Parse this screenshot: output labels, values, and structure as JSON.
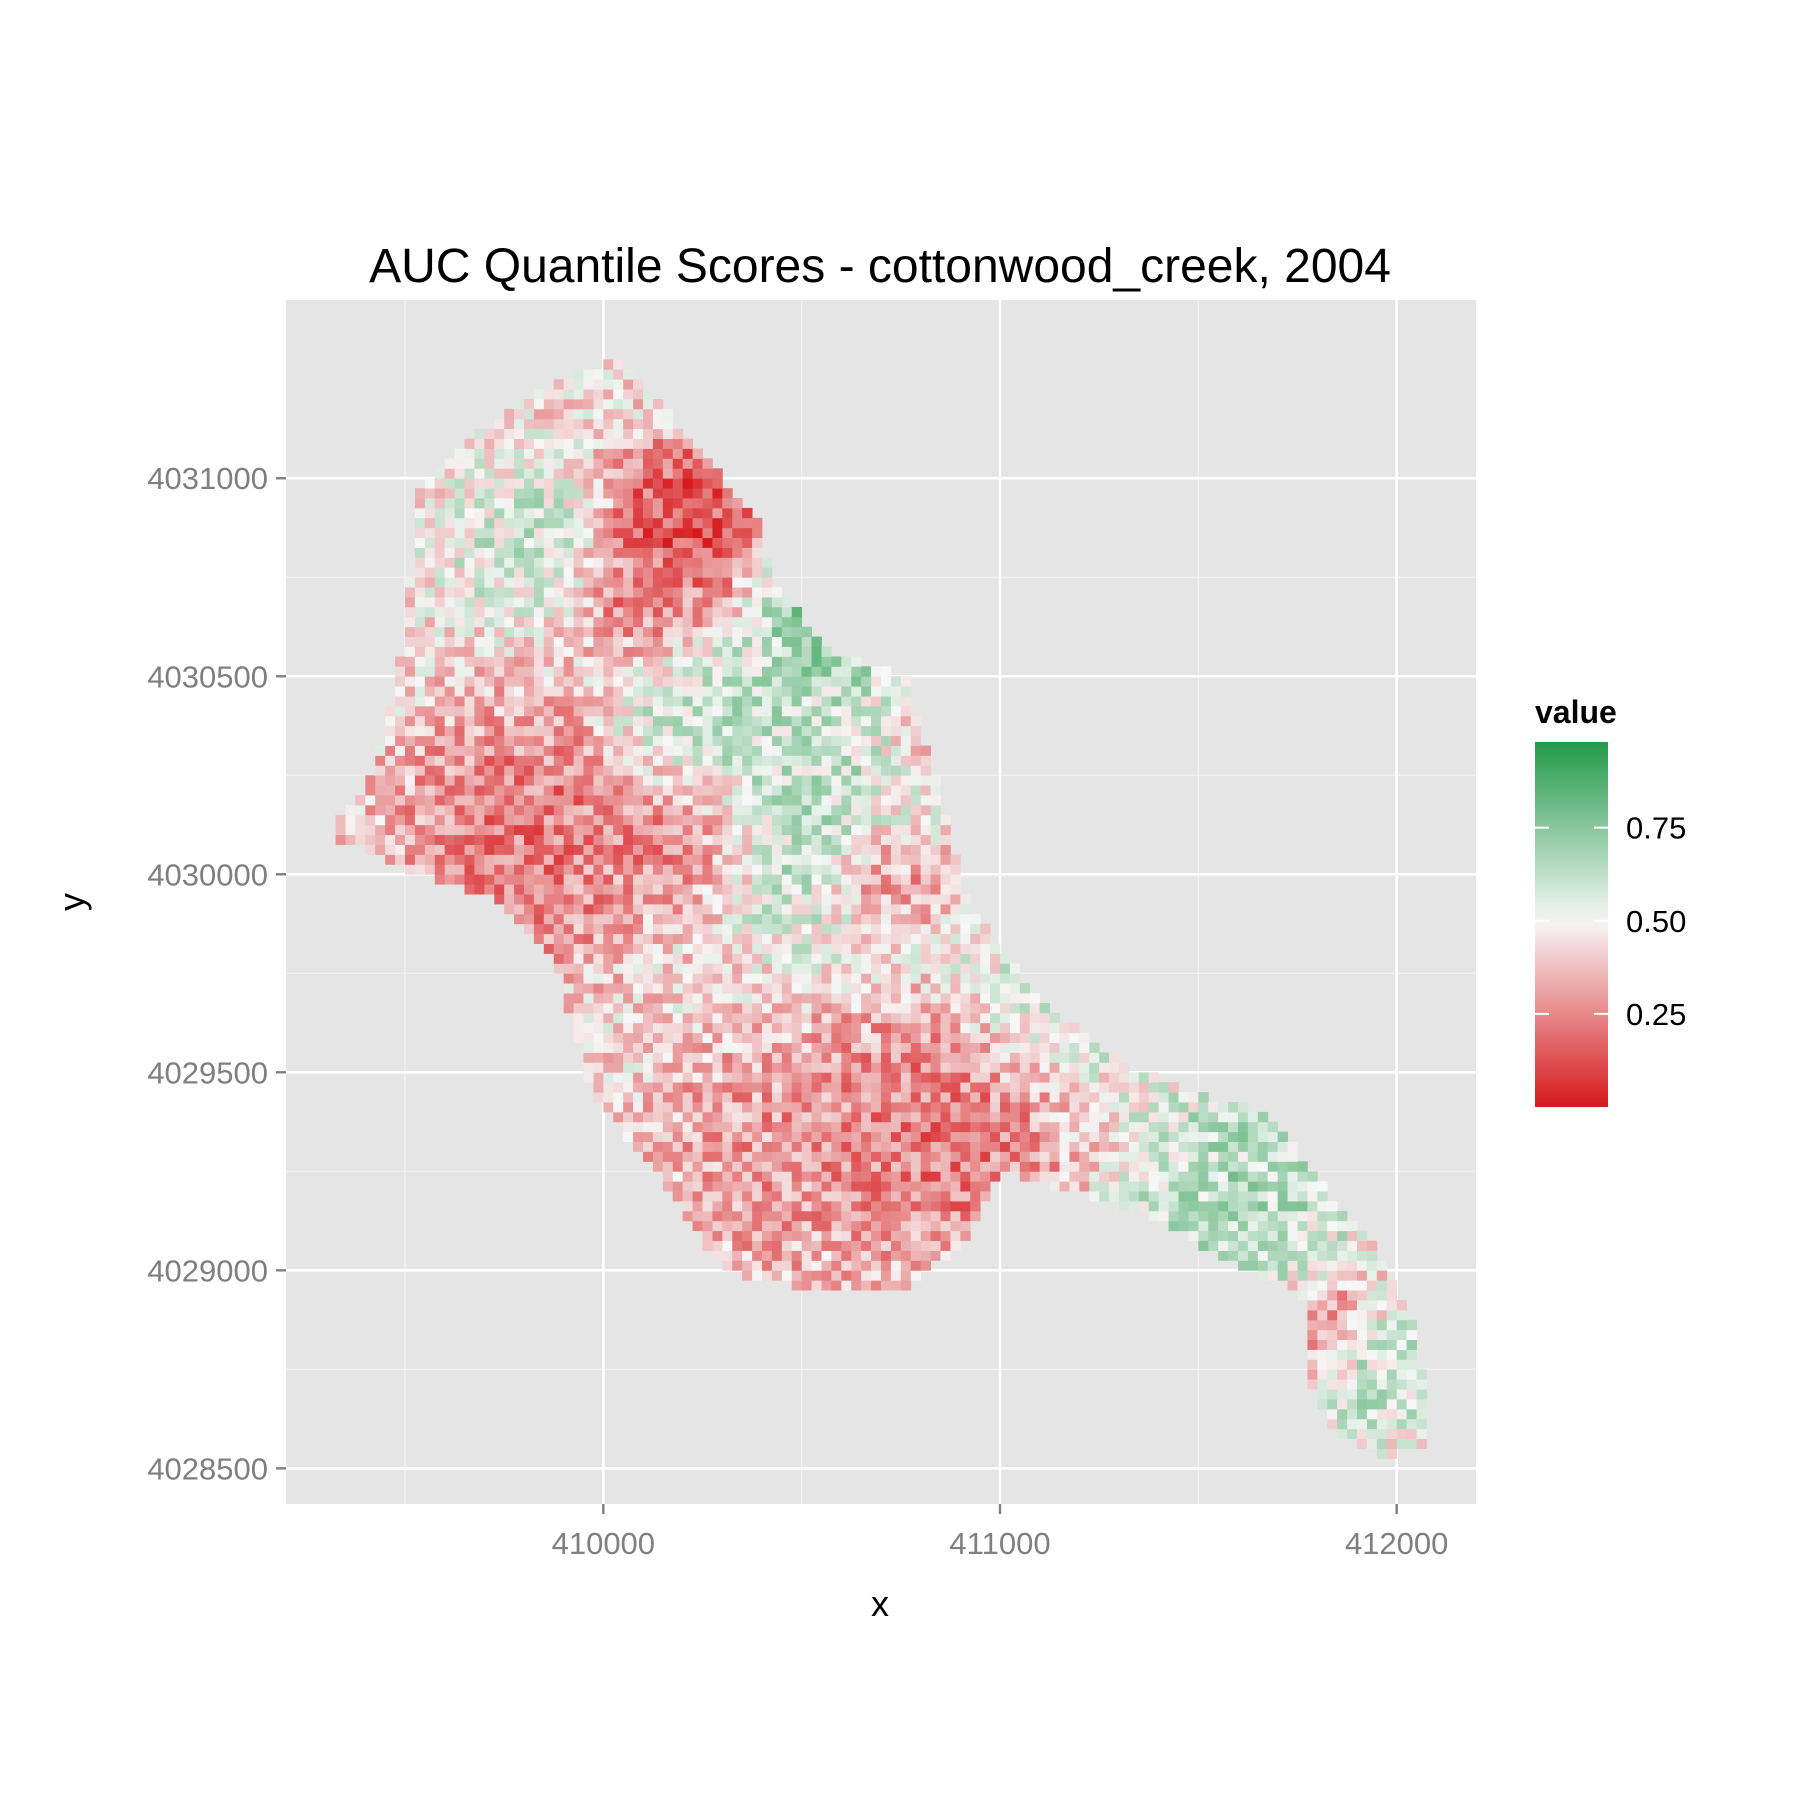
{
  "chart_data": {
    "type": "heatmap",
    "title": "AUC Quantile Scores - cottonwood_creek, 2004",
    "xlabel": "x",
    "ylabel": "y",
    "xlim": [
      409200,
      412200
    ],
    "ylim": [
      4028410,
      4031450
    ],
    "x_ticks": [
      410000,
      411000,
      412000
    ],
    "x_tick_labels": [
      "410000",
      "411000",
      "412000"
    ],
    "y_ticks": [
      4028500,
      4029000,
      4029500,
      4030000,
      4030500,
      4031000
    ],
    "y_tick_labels": [
      "4028500",
      "4029000",
      "4029500",
      "4030000",
      "4030500",
      "4031000"
    ],
    "grid": true,
    "panel_background": "#e5e5e5",
    "cell_size": 25,
    "region_outline": [
      [
        409970,
        4031280
      ],
      [
        410050,
        4031300
      ],
      [
        410400,
        4030880
      ],
      [
        410420,
        4030760
      ],
      [
        410560,
        4030570
      ],
      [
        410760,
        4030500
      ],
      [
        410850,
        4030200
      ],
      [
        410920,
        4029920
      ],
      [
        411100,
        4029680
      ],
      [
        411300,
        4029530
      ],
      [
        411470,
        4029450
      ],
      [
        411600,
        4029420
      ],
      [
        411700,
        4029380
      ],
      [
        411800,
        4029230
      ],
      [
        411950,
        4029050
      ],
      [
        412060,
        4028830
      ],
      [
        412070,
        4028560
      ],
      [
        411970,
        4028530
      ],
      [
        411850,
        4028580
      ],
      [
        411780,
        4028720
      ],
      [
        411760,
        4028950
      ],
      [
        411640,
        4028990
      ],
      [
        411350,
        4029150
      ],
      [
        411100,
        4029220
      ],
      [
        411000,
        4029250
      ],
      [
        410930,
        4029100
      ],
      [
        410770,
        4028950
      ],
      [
        410500,
        4028960
      ],
      [
        410300,
        4029000
      ],
      [
        410130,
        4029250
      ],
      [
        409970,
        4029450
      ],
      [
        409870,
        4029800
      ],
      [
        409700,
        4029950
      ],
      [
        409520,
        4030000
      ],
      [
        409310,
        4030100
      ],
      [
        409420,
        4030250
      ],
      [
        409480,
        4030500
      ],
      [
        409520,
        4030800
      ],
      [
        409520,
        4030950
      ],
      [
        409600,
        4031050
      ],
      [
        409730,
        4031150
      ],
      [
        409850,
        4031230
      ]
    ],
    "hotspots": [
      {
        "x": 410200,
        "y": 4030900,
        "value": 0.03,
        "radius": 150
      },
      {
        "x": 410130,
        "y": 4030700,
        "value": 0.18,
        "radius": 140
      },
      {
        "x": 410570,
        "y": 4030650,
        "value": 0.85,
        "radius": 140
      },
      {
        "x": 409800,
        "y": 4030100,
        "value": 0.15,
        "radius": 250
      },
      {
        "x": 410200,
        "y": 4030100,
        "value": 0.2,
        "radius": 150
      },
      {
        "x": 410550,
        "y": 4030150,
        "value": 0.67,
        "radius": 250
      },
      {
        "x": 410250,
        "y": 4030400,
        "value": 0.65,
        "radius": 180
      },
      {
        "x": 409800,
        "y": 4030850,
        "value": 0.62,
        "radius": 150
      },
      {
        "x": 410720,
        "y": 4030000,
        "value": 0.15,
        "radius": 120
      },
      {
        "x": 410850,
        "y": 4029350,
        "value": 0.15,
        "radius": 250
      },
      {
        "x": 410450,
        "y": 4029300,
        "value": 0.25,
        "radius": 250
      },
      {
        "x": 411600,
        "y": 4029200,
        "value": 0.7,
        "radius": 220
      },
      {
        "x": 411950,
        "y": 4028750,
        "value": 0.68,
        "radius": 120
      },
      {
        "x": 411830,
        "y": 4028850,
        "value": 0.15,
        "radius": 90
      },
      {
        "x": 411150,
        "y": 4029700,
        "value": 0.6,
        "radius": 200
      },
      {
        "x": 410850,
        "y": 4030300,
        "value": 0.35,
        "radius": 120
      }
    ],
    "legend": {
      "title": "value",
      "position": "right",
      "breaks": [
        0.25,
        0.5,
        0.75
      ],
      "break_labels": [
        "0.25",
        "0.50",
        "0.75"
      ],
      "range": [
        0.0,
        0.98
      ],
      "colors": {
        "low": "#d7191c",
        "mid": "#f7f7f7",
        "high": "#1a9641"
      }
    }
  }
}
